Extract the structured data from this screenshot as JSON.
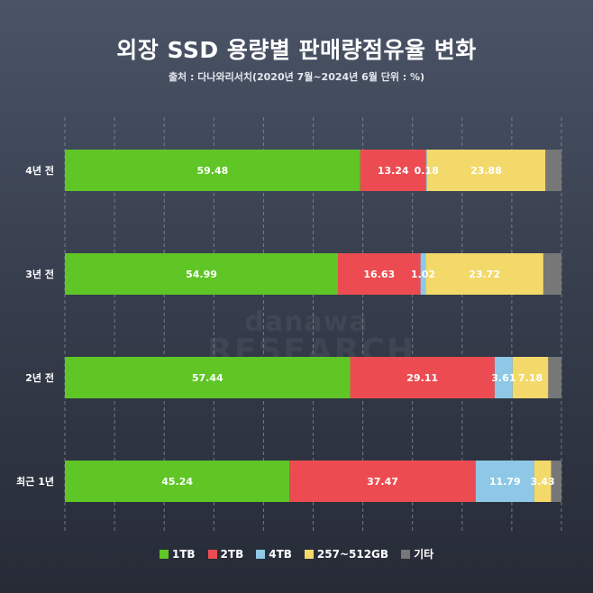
{
  "chart_data": {
    "type": "bar",
    "orientation": "horizontal",
    "stacked": true,
    "title": "외장 SSD 용량별 판매량점유율 변화",
    "subtitle": "출처 : 다나와리서치(2020년 7월~2024년 6월 단위 : %)",
    "categories": [
      "4년 전",
      "3년 전",
      "2년 전",
      "최근 1년"
    ],
    "series": [
      {
        "name": "1TB",
        "color": "#5fc625",
        "values": [
          59.48,
          54.99,
          57.44,
          45.24
        ],
        "labels": [
          "59.48",
          "54.99",
          "57.44",
          "45.24"
        ]
      },
      {
        "name": "2TB",
        "color": "#ec4c51",
        "values": [
          13.24,
          16.63,
          29.11,
          37.47
        ],
        "labels": [
          "13.24",
          "16.63",
          "29.11",
          "37.47"
        ]
      },
      {
        "name": "4TB",
        "color": "#8ec8e6",
        "values": [
          0.18,
          1.02,
          3.61,
          11.79
        ],
        "labels": [
          "0.18",
          "1.02",
          "3.61",
          "11.79"
        ]
      },
      {
        "name": "257~512GB",
        "color": "#f3d96a",
        "values": [
          23.88,
          23.72,
          7.18,
          3.43
        ],
        "labels": [
          "23.88",
          "23.72",
          "7.18",
          "3.43"
        ]
      },
      {
        "name": "기타",
        "color": "#777777",
        "values": [
          3.22,
          3.64,
          2.66,
          2.07
        ],
        "labels": [
          "",
          "",
          "",
          ""
        ]
      }
    ],
    "xlim": [
      0,
      100
    ],
    "grid": true,
    "legend": "bottom"
  },
  "watermark": {
    "line1": "danawa",
    "line2": "RESEARCH"
  }
}
